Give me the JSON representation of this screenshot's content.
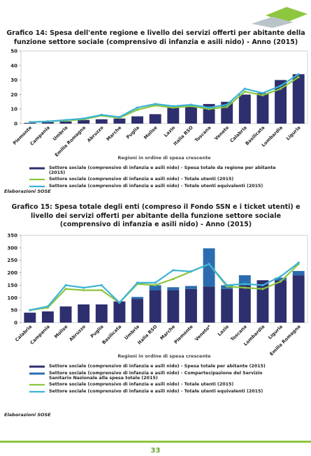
{
  "chart_data": [
    {
      "type": "bar",
      "title": "Grafico 14: Spesa dell'ente regione e livello dei servizi offerti per abitante della funzione settore sociale (comprensivo di infanzia e asili nido) - Anno (2015)",
      "x_label": "Regioni in ordine di spesa crescente",
      "source": "Elaborazioni SOSE",
      "categories": [
        "Piemonte",
        "Campania",
        "Umbria",
        "Emilia Romagna",
        "Abruzzo",
        "Marche",
        "Puglia",
        "Molise",
        "Lazio",
        "Italia RSO",
        "Toscana",
        "Veneto",
        "Calabria",
        "Basilicata",
        "Lombardia",
        "Liguria"
      ],
      "ylim": [
        0,
        50
      ],
      "yticks": [
        0,
        10,
        20,
        30,
        40,
        50
      ],
      "grid": false,
      "series": [
        {
          "name": "Settore sociale (comprensivo di infanzia e asili nido) - Spesa totale da regione per abitante (2015)",
          "kind": "bar",
          "color": "#2e2f6e",
          "values": [
            0.5,
            1,
            1.5,
            2.5,
            3,
            3.5,
            5,
            6.5,
            11,
            12,
            13.5,
            15,
            20,
            21,
            30,
            34
          ]
        },
        {
          "name": "Settore sociale (comprensivo di infanzia e asili nido) - Totale utenti  (2015)",
          "kind": "line",
          "color": "#8dc63f",
          "values": [
            1,
            1.5,
            2,
            3,
            5.5,
            4,
            9.5,
            12.5,
            11,
            12,
            10,
            11.5,
            22,
            19.5,
            24,
            32
          ]
        },
        {
          "name": "Settore sociale (comprensivo di infanzia e asili nido) - Totale utenti equivalenti (2015)",
          "kind": "line",
          "color": "#3bb3d6",
          "values": [
            1,
            1.5,
            2.5,
            3.5,
            6,
            4.5,
            11,
            13.5,
            12,
            13,
            11,
            13,
            24,
            21,
            26,
            34
          ]
        }
      ]
    },
    {
      "type": "bar",
      "title": "Grafico 15: Spesa totale degli enti (compreso il Fondo SSN e i ticket utenti) e livello dei servizi offerti per abitante della funzione settore sociale (comprensivo di infanzia e asili nido) - Anno (2015)",
      "x_label": "Regioni in ordine di spesa crescente",
      "source": "Elaborazioni SOSE",
      "categories": [
        "Calabria",
        "Campania",
        "Molise",
        "Abruzzo",
        "Puglia",
        "Basilicata",
        "Umbria",
        "Italia RSO",
        "Marche",
        "Piemonte",
        "Veneto*",
        "Lazio",
        "Toscana",
        "Lombardia",
        "Liguria",
        "Emilia Romagna"
      ],
      "ylim": [
        0,
        350
      ],
      "yticks": [
        0,
        50,
        100,
        150,
        200,
        250,
        300,
        350
      ],
      "grid": false,
      "series": [
        {
          "name": "Settore sociale (comprensivo di infanzia e asili nido) - Spesa totale per abitante (2015)",
          "kind": "bar",
          "color": "#2e2f6e",
          "values": [
            40,
            45,
            65,
            73,
            73,
            85,
            95,
            130,
            130,
            135,
            145,
            135,
            150,
            170,
            170,
            190
          ]
        },
        {
          "name": "Settore sociale (comprensivo di infanzia e asili nido) - Compartecipazione del Servizio Sanitario Nazionale alla spesa totale  (2015)",
          "kind": "bar",
          "color": "#2b6cb0",
          "values": [
            0,
            0,
            0,
            0,
            0,
            0,
            8,
            20,
            12,
            12,
            153,
            15,
            40,
            0,
            10,
            17
          ]
        },
        {
          "name": "Settore sociale (comprensivo di infanzia e asili nido) - Totale utenti  (2015)",
          "kind": "line",
          "color": "#8dc63f",
          "values": [
            50,
            60,
            135,
            130,
            130,
            80,
            155,
            150,
            175,
            205,
            235,
            145,
            140,
            135,
            165,
            235
          ]
        },
        {
          "name": "Settore sociale (comprensivo di infanzia e asili nido) - Totale utenti equivalenti (2015)",
          "kind": "line",
          "color": "#3bb3d6",
          "values": [
            50,
            65,
            150,
            140,
            150,
            80,
            160,
            160,
            210,
            205,
            235,
            150,
            155,
            150,
            185,
            240
          ]
        }
      ]
    }
  ],
  "page": {
    "number": "33"
  }
}
